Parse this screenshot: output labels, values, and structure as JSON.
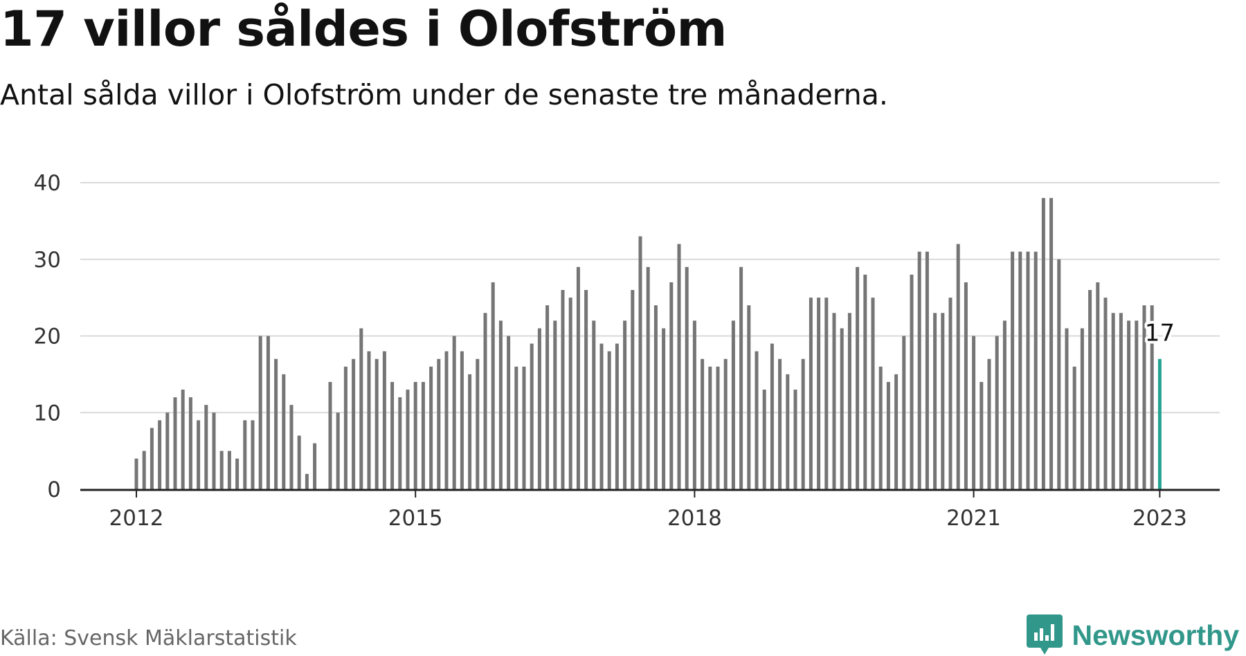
{
  "title": "17 villor såldes i Olofström",
  "subtitle": "Antal sålda villor i Olofström under de senaste tre månaderna.",
  "source": "Källa: Svensk Mäklarstatistik",
  "brand": {
    "name": "Newsworthy",
    "color": "#31978a",
    "icon": "bar-chart-bubble-icon"
  },
  "colors": {
    "bar": "#757575",
    "highlight": "#24a393",
    "grid": "#d9d9d9",
    "axis": "#222222"
  },
  "chart_data": {
    "type": "bar",
    "title": "17 villor såldes i Olofström",
    "ylim": [
      0,
      40
    ],
    "yticks": [
      0,
      10,
      20,
      30,
      40
    ],
    "xticks": [
      {
        "label": "2012",
        "index": 0
      },
      {
        "label": "2015",
        "index": 36
      },
      {
        "label": "2018",
        "index": 72
      },
      {
        "label": "2021",
        "index": 108
      },
      {
        "label": "2023",
        "index": 132
      }
    ],
    "grid": true,
    "highlight": {
      "index": 132,
      "label": "17"
    },
    "series": [
      {
        "values": [
          4,
          5,
          8,
          9,
          10,
          12,
          13,
          12,
          9,
          11,
          10,
          5,
          5,
          4,
          9,
          9,
          20,
          20,
          17,
          15,
          11,
          7,
          2,
          6,
          0,
          14,
          10,
          16,
          17,
          21,
          18,
          17,
          18,
          14,
          12,
          13,
          14,
          14,
          16,
          17,
          18,
          20,
          18,
          15,
          17,
          23,
          27,
          22,
          20,
          16,
          16,
          19,
          21,
          24,
          22,
          26,
          25,
          29,
          26,
          22,
          19,
          18,
          19,
          22,
          26,
          33,
          29,
          24,
          21,
          27,
          32,
          29,
          22,
          17,
          16,
          16,
          17,
          22,
          29,
          24,
          18,
          13,
          19,
          17,
          15,
          13,
          17,
          25,
          25,
          25,
          23,
          21,
          23,
          29,
          28,
          25,
          16,
          14,
          15,
          20,
          28,
          31,
          31,
          23,
          23,
          25,
          32,
          27,
          20,
          14,
          17,
          20,
          22,
          31,
          31,
          31,
          31,
          38,
          38,
          30,
          21,
          16,
          21,
          26,
          27,
          25,
          23,
          23,
          22,
          22,
          24,
          24,
          17
        ]
      }
    ]
  }
}
